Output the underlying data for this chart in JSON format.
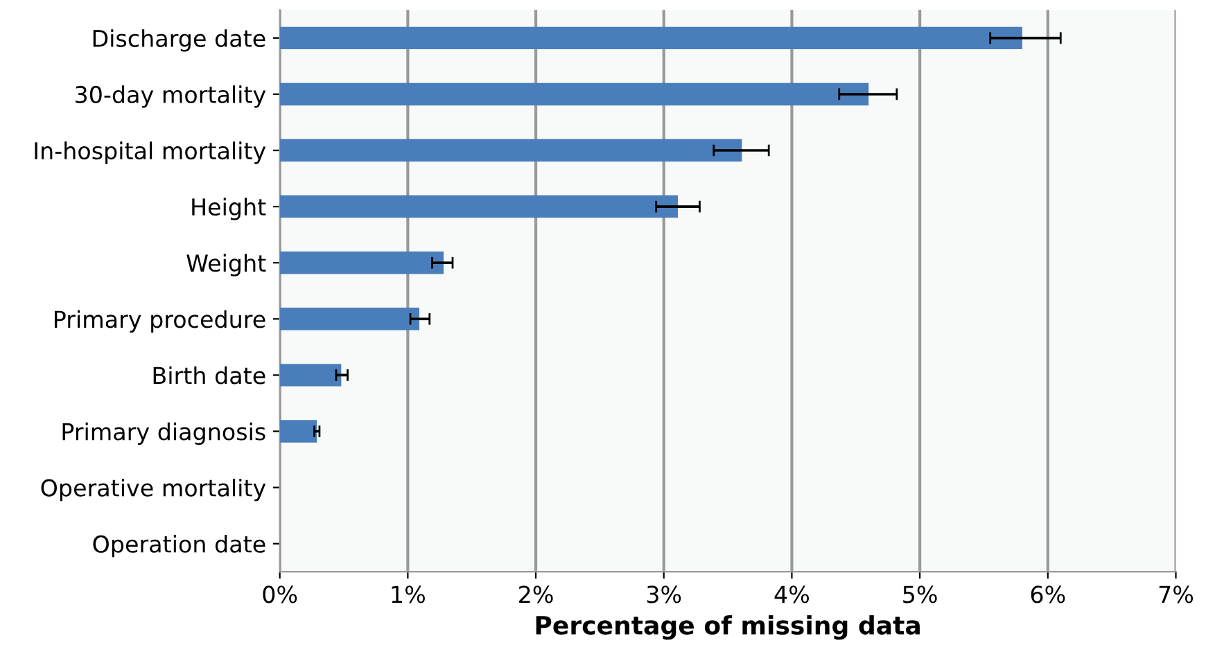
{
  "chart_data": {
    "type": "bar",
    "orientation": "horizontal",
    "xlabel": "Percentage of missing data",
    "categories": [
      "Discharge date",
      "30-day mortality",
      "In-hospital mortality",
      "Height",
      "Weight",
      "Primary procedure",
      "Birth date",
      "Primary diagnosis",
      "Operative mortality",
      "Operation date"
    ],
    "values": [
      5.8,
      4.6,
      3.61,
      3.11,
      1.28,
      1.09,
      0.48,
      0.29,
      0,
      0
    ],
    "errors": [
      [
        5.55,
        6.1
      ],
      [
        4.37,
        4.82
      ],
      [
        3.39,
        3.82
      ],
      [
        2.94,
        3.28
      ],
      [
        1.19,
        1.35
      ],
      [
        1.02,
        1.17
      ],
      [
        0.44,
        0.53
      ],
      [
        0.27,
        0.31
      ],
      null,
      null
    ],
    "color": "#4a7ebb",
    "xlim": [
      0,
      7
    ],
    "xticks": [
      {
        "value": 0,
        "label": "0%"
      },
      {
        "value": 1,
        "label": "1%"
      },
      {
        "value": 2,
        "label": "2%"
      },
      {
        "value": 3,
        "label": "3%"
      },
      {
        "value": 4,
        "label": "4%"
      },
      {
        "value": 5,
        "label": "5%"
      },
      {
        "value": 6,
        "label": "6%"
      },
      {
        "value": 7,
        "label": "7%"
      }
    ],
    "grid": "x",
    "legend": false
  }
}
